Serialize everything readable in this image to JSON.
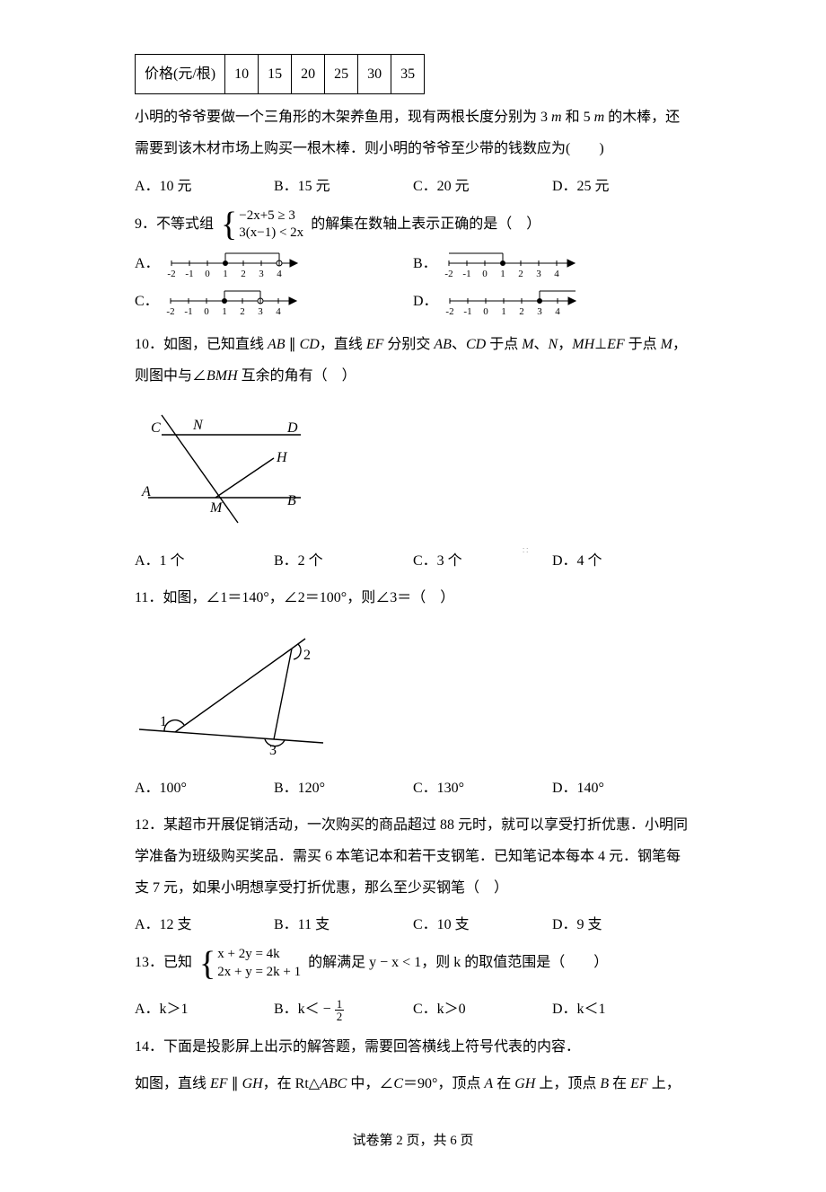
{
  "table": {
    "header": "价格(元/根)",
    "values": [
      "10",
      "15",
      "20",
      "25",
      "30",
      "35"
    ]
  },
  "q8": {
    "text1": "小明的爷爷要做一个三角形的木架养鱼用，现有两根长度分别为 3 ",
    "unit1": "m",
    "text2": " 和 5 ",
    "unit2": "m",
    "text3": " 的木棒，还需要到该木材市场上购买一根木棒．则小明的爷爷至少带的钱数应为(　　)",
    "opts": [
      "A．10 元",
      "B．15 元",
      "C．20 元",
      "D．25 元"
    ]
  },
  "q9": {
    "num": "9．不等式组",
    "sys1": "−2x+5 ≥ 3",
    "sys2": "3(x−1) < 2x",
    "tail": "的解集在数轴上表示正确的是（　）",
    "labels": [
      "A．",
      "B．",
      "C．",
      "D．"
    ],
    "charts": [
      {
        "bracket": [
          1,
          4,
          "open"
        ],
        "fillPoint": 1,
        "hollowPoint": 4
      },
      {
        "bracket": [
          -2,
          1,
          "left"
        ],
        "fillPoint": 1,
        "hollowPoint": null,
        "bracketOpenLeft": true
      },
      {
        "bracket": [
          1,
          3,
          "closed"
        ],
        "fillPoint": 1,
        "hollowPoint": 3
      },
      {
        "bracket": [
          3,
          5,
          "right"
        ],
        "fillPoint": 3,
        "hollowPoint": null
      }
    ],
    "ticks": [
      -2,
      -1,
      0,
      1,
      2,
      3,
      4
    ]
  },
  "q10": {
    "text": "10．如图，已知直线 AB∥CD，直线 EF 分别交 AB、CD 于点 M、N，MH⊥EF 于点 M，则图中与∠BMH 互余的角有（　）",
    "opts": [
      "A．1 个",
      "B．2 个",
      "C．3 个",
      "D．4 个"
    ],
    "diagram": {
      "C": "C",
      "N": "N",
      "D": "D",
      "H": "H",
      "A": "A",
      "M": "M",
      "B": "B"
    }
  },
  "q11": {
    "text": "11．如图，∠1＝140°，∠2＝100°，则∠3＝（　）",
    "opts": [
      "A．100°",
      "B．120°",
      "C．130°",
      "D．140°"
    ],
    "labels": {
      "1": "1",
      "2": "2",
      "3": "3"
    }
  },
  "q12": {
    "text": "12．某超市开展促销活动，一次购买的商品超过 88 元时，就可以享受打折优惠．小明同学准备为班级购买奖品．需买 6 本笔记本和若干支钢笔．已知笔记本每本 4 元．钢笔每支 7 元，如果小明想享受打折优惠，那么至少买钢笔（　）",
    "opts": [
      "A．12 支",
      "B．11 支",
      "C．10 支",
      "D．9 支"
    ]
  },
  "q13": {
    "num": "13．已知",
    "sys1": "x + 2y = 4k",
    "sys2": "2x + y = 2k + 1",
    "mid": "的解满足 y − x < 1，则 k 的取值范围是（　　）",
    "opts": {
      "a": "A．k＞1",
      "b_pre": "B．k＜ − ",
      "b_num": "1",
      "b_den": "2",
      "c": "C．k＞0",
      "d": "D．k＜1"
    }
  },
  "q14": {
    "l1": "14．下面是投影屏上出示的解答题，需要回答横线上符号代表的内容．",
    "l2": "如图，直线 EF∥GH，在 Rt△ABC 中，∠C＝90°，顶点 A 在 GH 上，顶点 B 在 EF 上，"
  },
  "footer": "试卷第 2 页，共 6 页"
}
